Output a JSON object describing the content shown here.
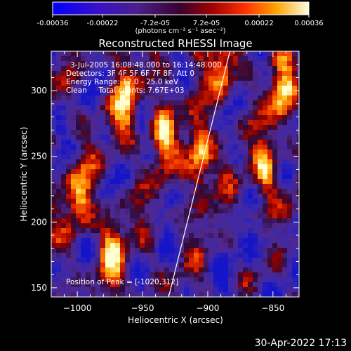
{
  "colorbar": {
    "ticks": [
      "-0.00036",
      "-0.00022",
      "-7.2e-05",
      "7.2e-05",
      "0.00022",
      "0.00036"
    ],
    "unit_label": "(photons cm⁻² s⁻¹ asec⁻²)",
    "range": [
      -0.00036,
      0.00036
    ]
  },
  "chart_data": {
    "type": "heatmap",
    "title": "Reconstructed RHESSI Image",
    "xlabel": "Heliocentric X (arcsec)",
    "ylabel": "Heliocentric Y (arcsec)",
    "xlim": [
      -1020,
      -830
    ],
    "ylim": [
      143,
      330
    ],
    "x_ticks": [
      -1000,
      -950,
      -900,
      -850
    ],
    "y_ticks": [
      150,
      200,
      250,
      300
    ],
    "x_tick_labels": [
      "−1000",
      "−950",
      "−900",
      "−850"
    ],
    "y_tick_labels": [
      "150",
      "200",
      "250",
      "300"
    ],
    "annotations": [
      "3-Jul-2005 16:08:48.000 to 16:14:48.000",
      "Detectors: 3F 4F 5F 6F 7F 8F, Att 0",
      "Energy Range: 12.0 - 25.0 keV",
      "Clean     Total counts: 7.67E+03"
    ],
    "peak_label": "Position of Peak = [-1020,312]",
    "limb_line": {
      "x": [
        -930,
        -883
      ],
      "y": [
        143,
        330
      ]
    },
    "bright_ridge_centers": [
      [
        -908,
        250
      ],
      [
        -890,
        320
      ],
      [
        -1000,
        220
      ],
      [
        -965,
        292
      ],
      [
        -975,
        180
      ],
      [
        -937,
        270
      ],
      [
        -857,
        240
      ],
      [
        -845,
        300
      ]
    ]
  },
  "footer": {
    "timestamp": "30-Apr-2022 17:13"
  }
}
